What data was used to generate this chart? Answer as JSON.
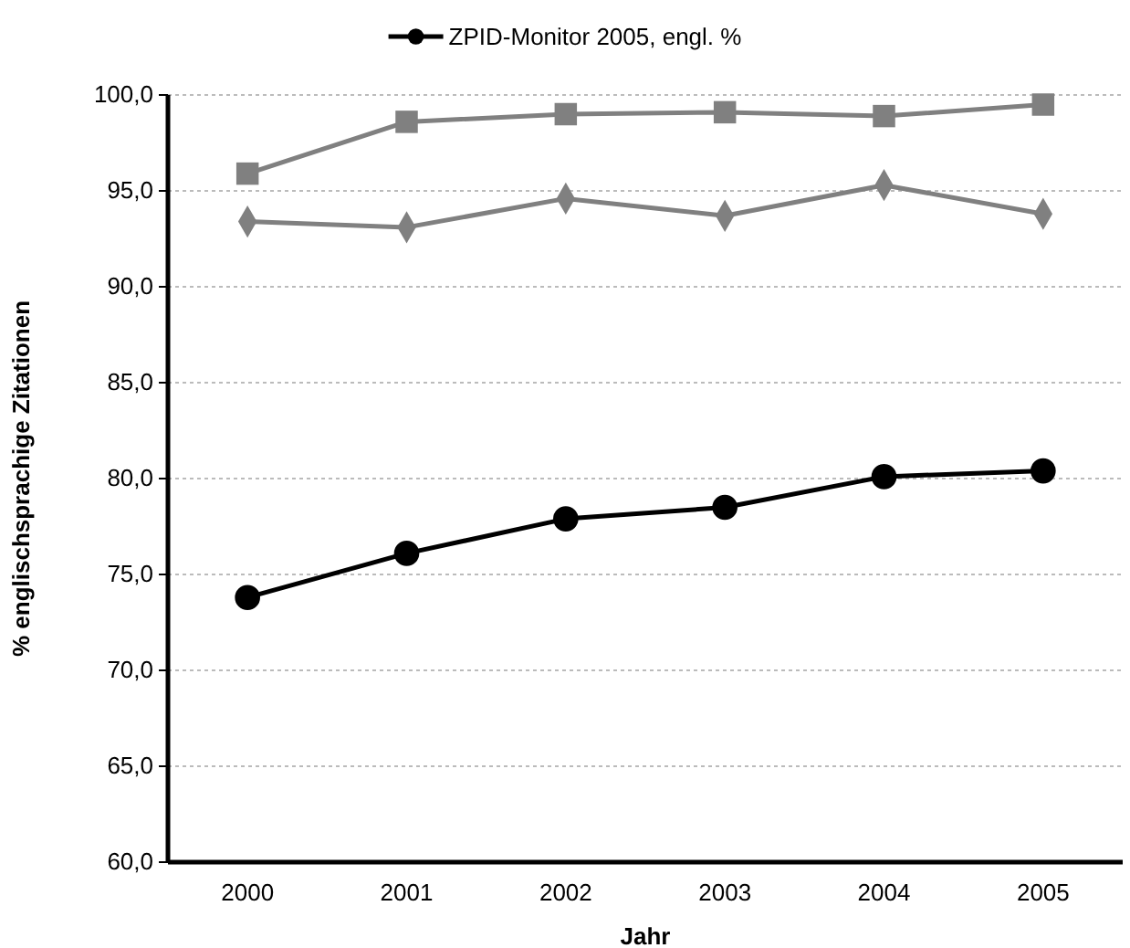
{
  "chart_data": {
    "type": "line",
    "xlabel": "Jahr",
    "ylabel": "% englischsprachige Zitationen",
    "categories": [
      "2000",
      "2001",
      "2002",
      "2003",
      "2004",
      "2005"
    ],
    "series": [
      {
        "name": "ZPID-Monitor 2005, engl. %",
        "color": "#000000",
        "marker": "circle",
        "values": [
          73.8,
          76.1,
          77.9,
          78.5,
          80.1,
          80.4
        ]
      },
      {
        "color": "#808080",
        "marker": "diamond",
        "values": [
          93.4,
          93.1,
          94.6,
          93.7,
          95.3,
          93.8
        ]
      },
      {
        "color": "#808080",
        "marker": "square",
        "values": [
          95.9,
          98.6,
          99.0,
          99.1,
          98.9,
          99.5
        ]
      }
    ],
    "ylim": [
      60,
      100
    ],
    "yticks": [
      {
        "value": 60,
        "label": "60,0"
      },
      {
        "value": 65,
        "label": "65,0"
      },
      {
        "value": 70,
        "label": "70,0"
      },
      {
        "value": 75,
        "label": "75,0"
      },
      {
        "value": 80,
        "label": "80,0"
      },
      {
        "value": 85,
        "label": "85,0"
      },
      {
        "value": 90,
        "label": "90,0"
      },
      {
        "value": 95,
        "label": "95,0"
      },
      {
        "value": 100,
        "label": "100,0"
      }
    ],
    "grid": "y",
    "legend": "top"
  }
}
